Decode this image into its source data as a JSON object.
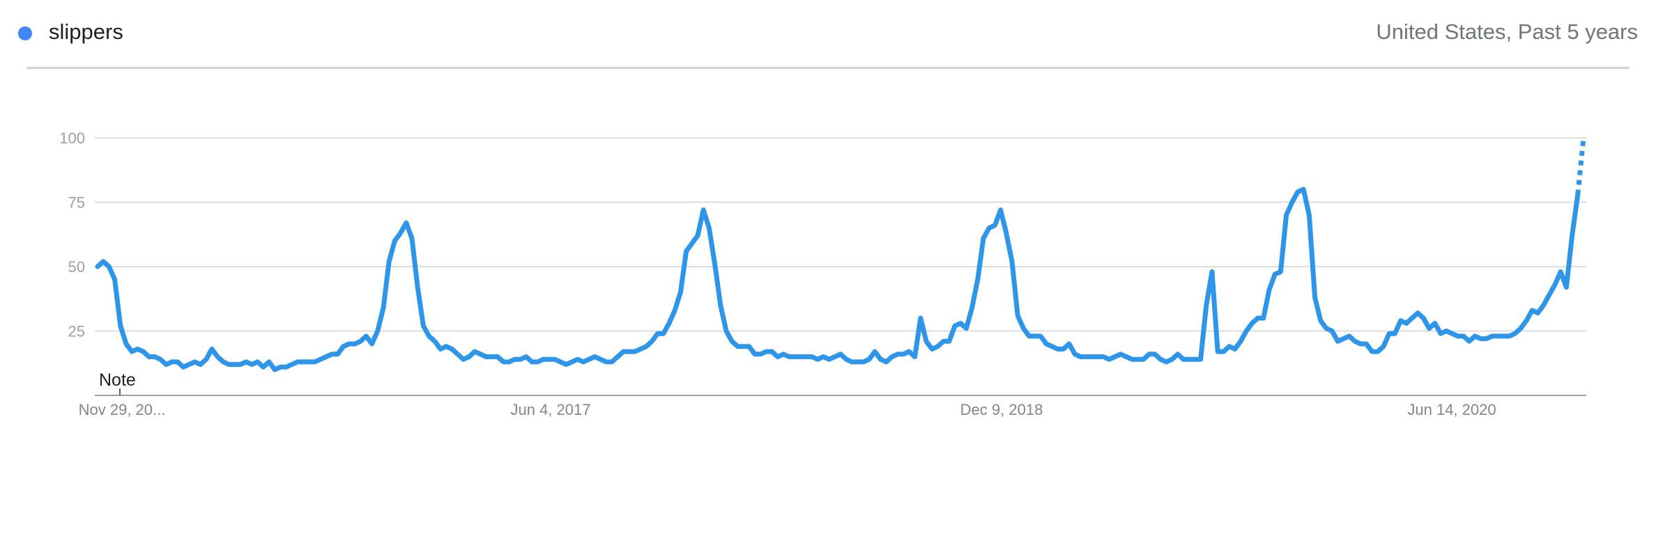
{
  "header": {
    "term": "slippers",
    "region_period": "United States, Past 5 years",
    "series_color": "#4285f4"
  },
  "chart_data": {
    "type": "line",
    "title": "",
    "xlabel": "",
    "ylabel": "",
    "ylim": [
      0,
      100
    ],
    "y_ticks": [
      25,
      50,
      75,
      100
    ],
    "x_ticks": [
      "Nov 29, 20...",
      "Jun 4, 2017",
      "Dec 9, 2018",
      "Jun 14, 2020"
    ],
    "grid": true,
    "line_color": "#2f95e8",
    "note_label": "Note",
    "partial_segment": "last point dotted (incomplete data)",
    "series": [
      {
        "name": "slippers",
        "values": [
          50,
          52,
          50,
          45,
          27,
          20,
          17,
          18,
          17,
          15,
          15,
          14,
          12,
          13,
          13,
          11,
          12,
          13,
          12,
          14,
          18,
          15,
          13,
          12,
          12,
          12,
          13,
          12,
          13,
          11,
          13,
          10,
          11,
          11,
          12,
          13,
          13,
          13,
          13,
          14,
          15,
          16,
          16,
          19,
          20,
          20,
          21,
          23,
          20,
          25,
          34,
          52,
          60,
          63,
          67,
          61,
          42,
          27,
          23,
          21,
          18,
          19,
          18,
          16,
          14,
          15,
          17,
          16,
          15,
          15,
          15,
          13,
          13,
          14,
          14,
          15,
          13,
          13,
          14,
          14,
          14,
          13,
          12,
          13,
          14,
          13,
          14,
          15,
          14,
          13,
          13,
          15,
          17,
          17,
          17,
          18,
          19,
          21,
          24,
          24,
          28,
          33,
          40,
          56,
          59,
          62,
          72,
          65,
          51,
          35,
          25,
          21,
          19,
          19,
          19,
          16,
          16,
          17,
          17,
          15,
          16,
          15,
          15,
          15,
          15,
          15,
          14,
          15,
          14,
          15,
          16,
          14,
          13,
          13,
          13,
          14,
          17,
          14,
          13,
          15,
          16,
          16,
          17,
          15,
          30,
          21,
          18,
          19,
          21,
          21,
          27,
          28,
          26,
          34,
          45,
          61,
          65,
          66,
          72,
          63,
          52,
          31,
          26,
          23,
          23,
          23,
          20,
          19,
          18,
          18,
          20,
          16,
          15,
          15,
          15,
          15,
          15,
          14,
          15,
          16,
          15,
          14,
          14,
          14,
          16,
          16,
          14,
          13,
          14,
          16,
          14,
          14,
          14,
          14,
          35,
          48,
          17,
          17,
          19,
          18,
          21,
          25,
          28,
          30,
          30,
          41,
          47,
          48,
          70,
          75,
          79,
          80,
          70,
          38,
          29,
          26,
          25,
          21,
          22,
          23,
          21,
          20,
          20,
          17,
          17,
          19,
          24,
          24,
          29,
          28,
          30,
          32,
          30,
          26,
          28,
          24,
          25,
          24,
          23,
          23,
          21,
          23,
          22,
          22,
          23,
          23,
          23,
          23,
          24,
          26,
          29,
          33,
          32,
          35,
          39,
          43,
          48,
          42,
          62,
          78,
          100
        ]
      }
    ]
  }
}
